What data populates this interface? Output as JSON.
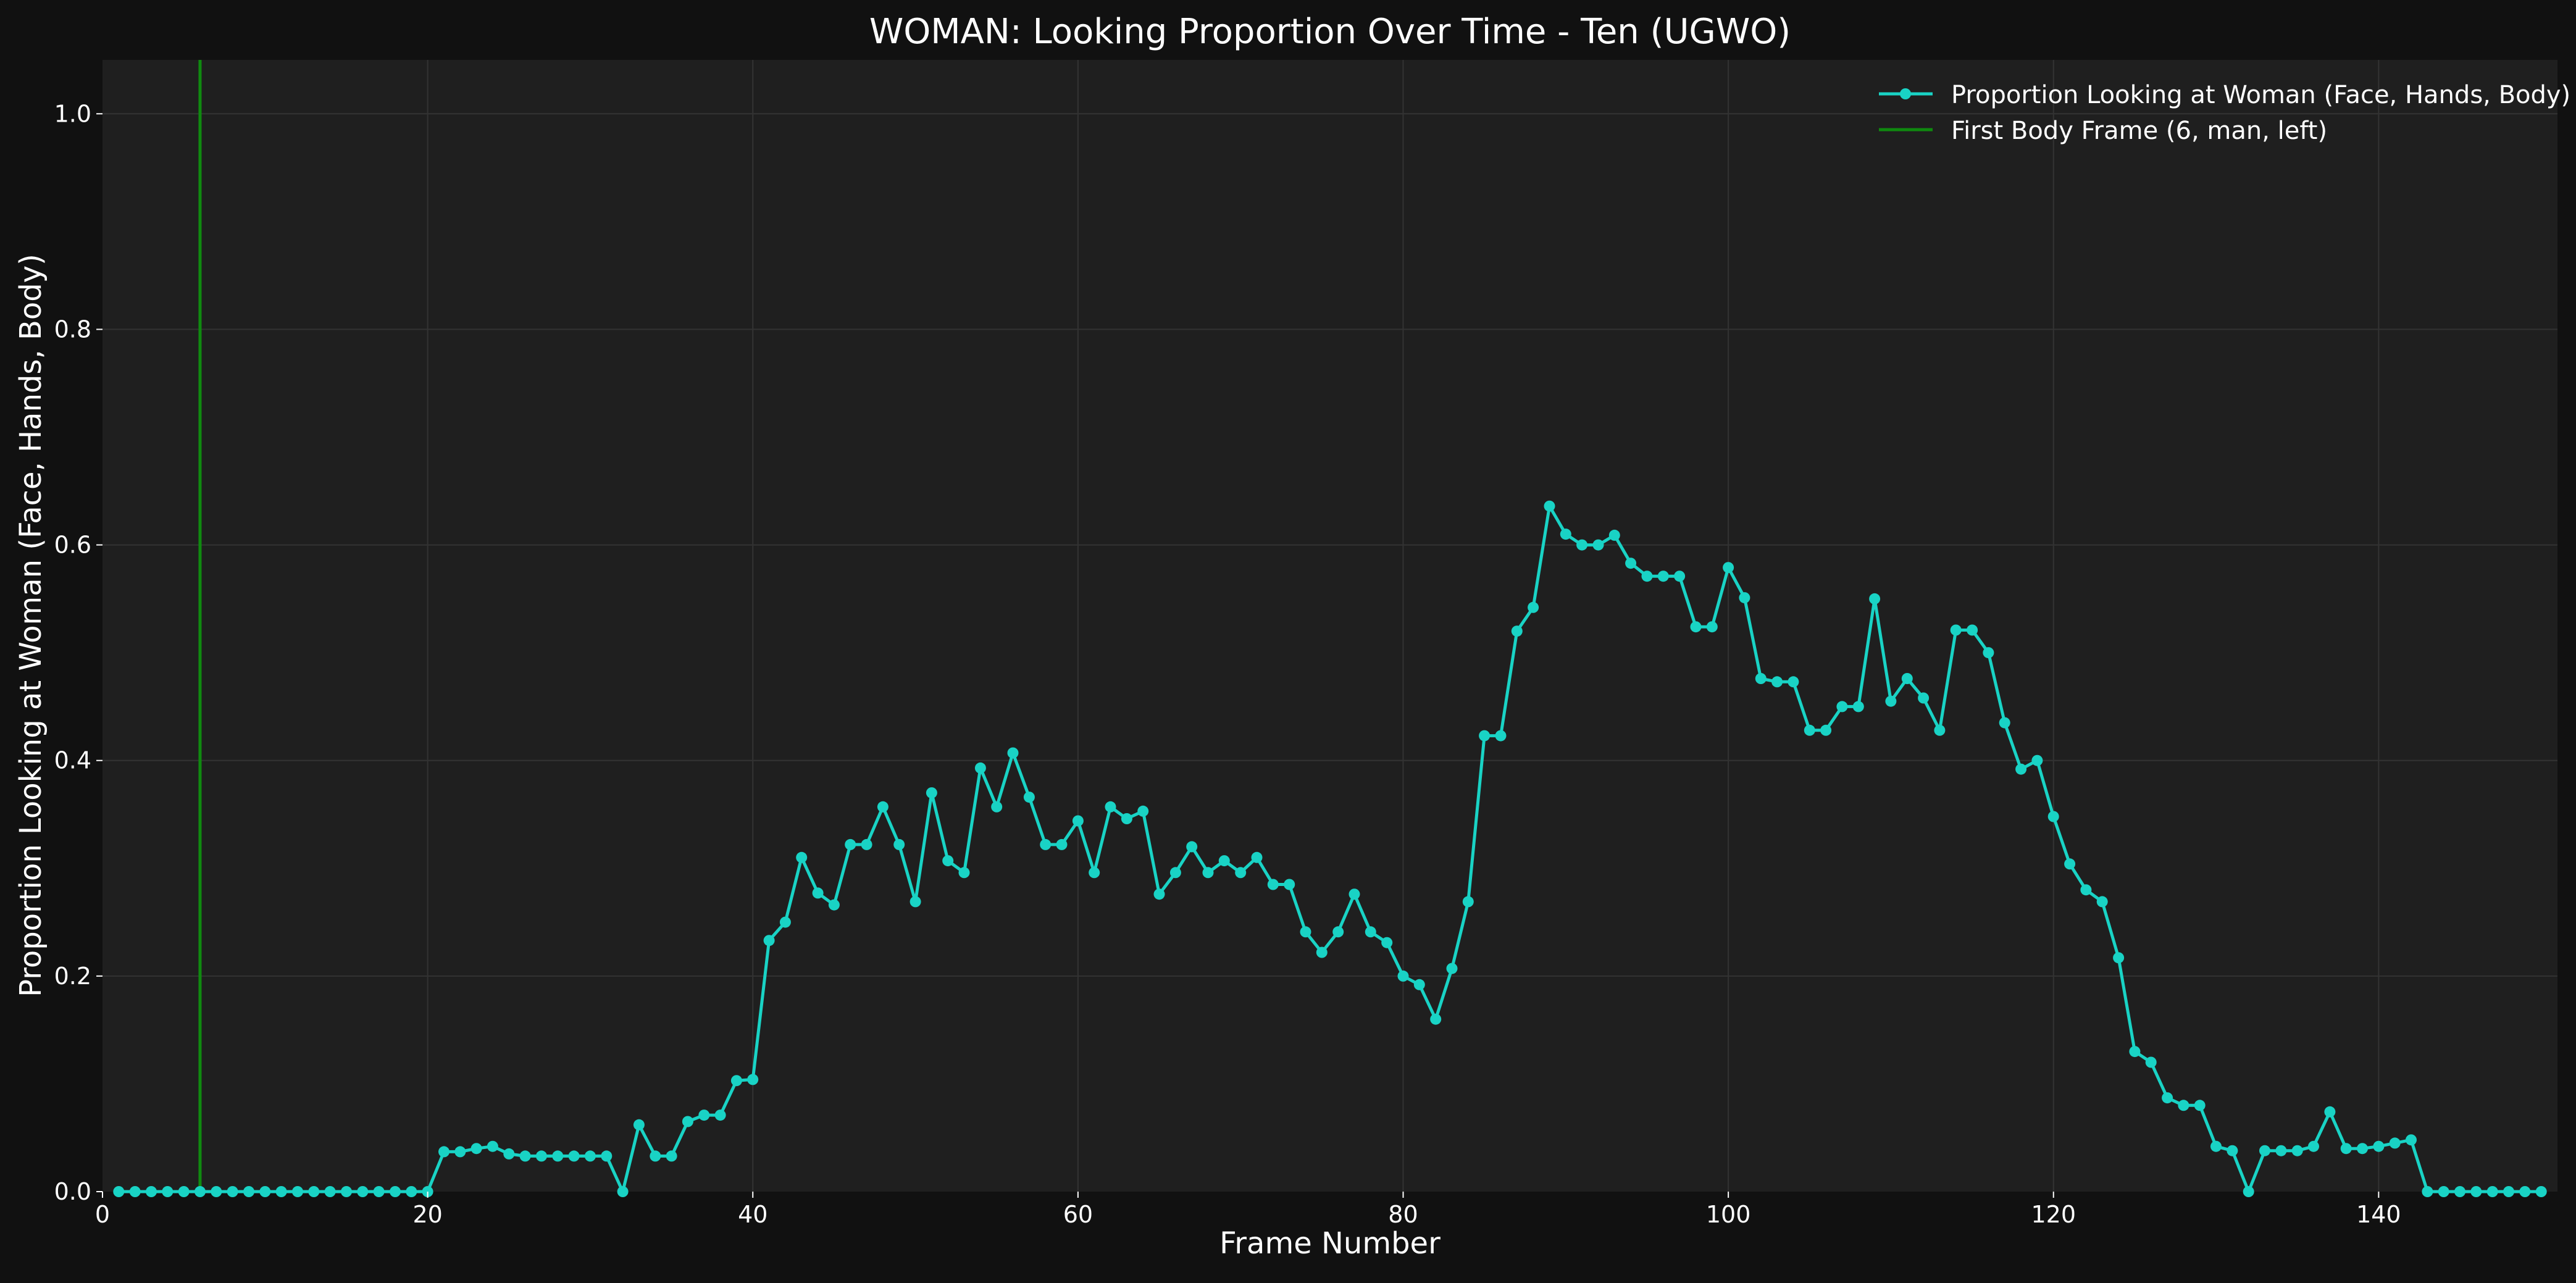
{
  "colors": {
    "figure_bg": "#111111",
    "plot_bg": "#1f1f1f",
    "grid": "#333333",
    "series_line": "#19d3c5",
    "vline": "#0f8a0f",
    "text": "#ffffff",
    "legend_text": "#ffffff"
  },
  "chart_data": {
    "type": "line",
    "title": "WOMAN: Looking Proportion Over Time - Ten (UGWO)",
    "xlabel": "Frame Number",
    "ylabel": "Proportion Looking at Woman (Face, Hands, Body)",
    "xlim": [
      0,
      151
    ],
    "ylim": [
      0,
      1.05
    ],
    "xticks": [
      0,
      20,
      40,
      60,
      80,
      100,
      120,
      140
    ],
    "yticks": [
      0.0,
      0.2,
      0.4,
      0.6,
      0.8,
      1.0
    ],
    "xtick_labels": [
      "0",
      "20",
      "40",
      "60",
      "80",
      "100",
      "120",
      "140"
    ],
    "ytick_labels": [
      "0.0",
      "0.2",
      "0.4",
      "0.6",
      "0.8",
      "1.0"
    ],
    "grid": true,
    "legend_position": "top-right",
    "series": [
      {
        "name": "Proportion Looking at Woman (Face, Hands, Body)",
        "marker": "circle",
        "x": [
          1,
          2,
          3,
          4,
          5,
          6,
          7,
          8,
          9,
          10,
          11,
          12,
          13,
          14,
          15,
          16,
          17,
          18,
          19,
          20,
          21,
          22,
          23,
          24,
          25,
          26,
          27,
          28,
          29,
          30,
          31,
          32,
          33,
          34,
          35,
          36,
          37,
          38,
          39,
          40,
          41,
          42,
          43,
          44,
          45,
          46,
          47,
          48,
          49,
          50,
          51,
          52,
          53,
          54,
          55,
          56,
          57,
          58,
          59,
          60,
          61,
          62,
          63,
          64,
          65,
          66,
          67,
          68,
          69,
          70,
          71,
          72,
          73,
          74,
          75,
          76,
          77,
          78,
          79,
          80,
          81,
          82,
          83,
          84,
          85,
          86,
          87,
          88,
          89,
          90,
          91,
          92,
          93,
          94,
          95,
          96,
          97,
          98,
          99,
          100,
          101,
          102,
          103,
          104,
          105,
          106,
          107,
          108,
          109,
          110,
          111,
          112,
          113,
          114,
          115,
          116,
          117,
          118,
          119,
          120,
          121,
          122,
          123,
          124,
          125,
          126,
          127,
          128,
          129,
          130,
          131,
          132,
          133,
          134,
          135,
          136,
          137,
          138,
          139,
          140,
          141,
          142,
          143,
          144,
          145,
          146,
          147,
          148,
          149,
          150
        ],
        "y": [
          0,
          0,
          0,
          0,
          0,
          0,
          0,
          0,
          0,
          0,
          0,
          0,
          0,
          0,
          0,
          0,
          0,
          0,
          0,
          0,
          0.037,
          0.037,
          0.04,
          0.042,
          0.035,
          0.033,
          0.033,
          0.033,
          0.033,
          0.033,
          0.033,
          0,
          0.062,
          0.033,
          0.033,
          0.065,
          0.071,
          0.071,
          0.103,
          0.104,
          0.233,
          0.25,
          0.31,
          0.277,
          0.266,
          0.322,
          0.322,
          0.357,
          0.322,
          0.269,
          0.37,
          0.307,
          0.296,
          0.393,
          0.357,
          0.407,
          0.366,
          0.322,
          0.322,
          0.344,
          0.296,
          0.357,
          0.346,
          0.353,
          0.276,
          0.296,
          0.32,
          0.296,
          0.307,
          0.296,
          0.31,
          0.285,
          0.285,
          0.241,
          0.222,
          0.241,
          0.276,
          0.241,
          0.231,
          0.2,
          0.192,
          0.16,
          0.207,
          0.269,
          0.423,
          0.423,
          0.52,
          0.542,
          0.636,
          0.61,
          0.6,
          0.6,
          0.609,
          0.583,
          0.571,
          0.571,
          0.571,
          0.524,
          0.524,
          0.579,
          0.551,
          0.476,
          0.473,
          0.473,
          0.428,
          0.428,
          0.45,
          0.45,
          0.55,
          0.455,
          0.476,
          0.458,
          0.428,
          0.521,
          0.521,
          0.5,
          0.435,
          0.392,
          0.4,
          0.348,
          0.304,
          0.28,
          0.269,
          0.217,
          0.13,
          0.12,
          0.087,
          0.08,
          0.08,
          0.042,
          0.038,
          0,
          0.038,
          0.038,
          0.038,
          0.042,
          0.074,
          0.04,
          0.04,
          0.042,
          0.045,
          0.048,
          0,
          0,
          0,
          0,
          0,
          0,
          0,
          0
        ]
      }
    ],
    "vlines": [
      {
        "name": "First Body Frame (6, man, left)",
        "x": 6
      }
    ]
  }
}
